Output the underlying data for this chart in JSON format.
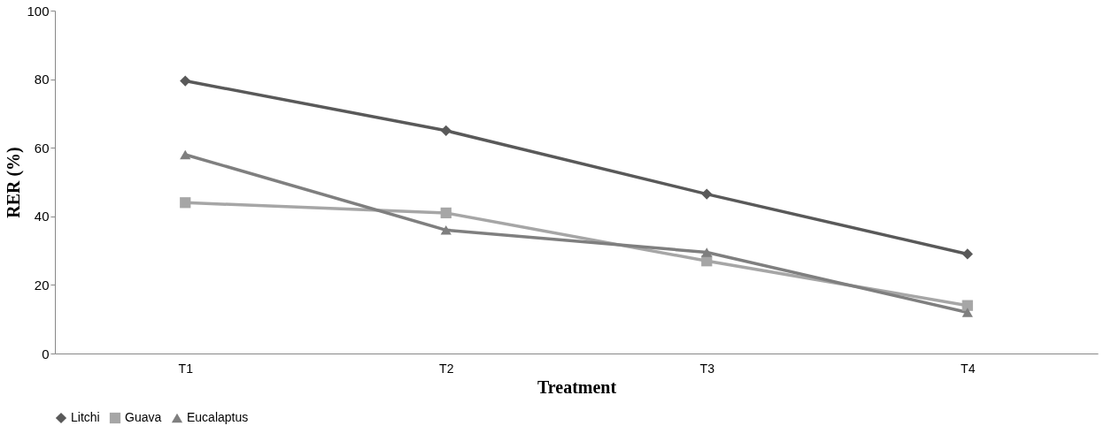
{
  "chart_data": {
    "type": "line",
    "xlabel": "Treatment",
    "ylabel": "RER (%)",
    "categories": [
      "T1",
      "T2",
      "T3",
      "T4"
    ],
    "series": [
      {
        "name": "Litchi",
        "color": "#595959",
        "marker": "diamond",
        "values": [
          79.5,
          65,
          46.5,
          29
        ]
      },
      {
        "name": "Guava",
        "color": "#a6a6a6",
        "marker": "square",
        "values": [
          44,
          41,
          27,
          14
        ]
      },
      {
        "name": "Eucalaptus",
        "color": "#7f7f7f",
        "marker": "triangle",
        "values": [
          58,
          36,
          29.5,
          12
        ]
      }
    ],
    "ylim": [
      0,
      100
    ],
    "yticks": [
      0,
      20,
      40,
      60,
      80,
      100
    ],
    "grid": false,
    "legend": "bottom",
    "line_style": "solid"
  }
}
